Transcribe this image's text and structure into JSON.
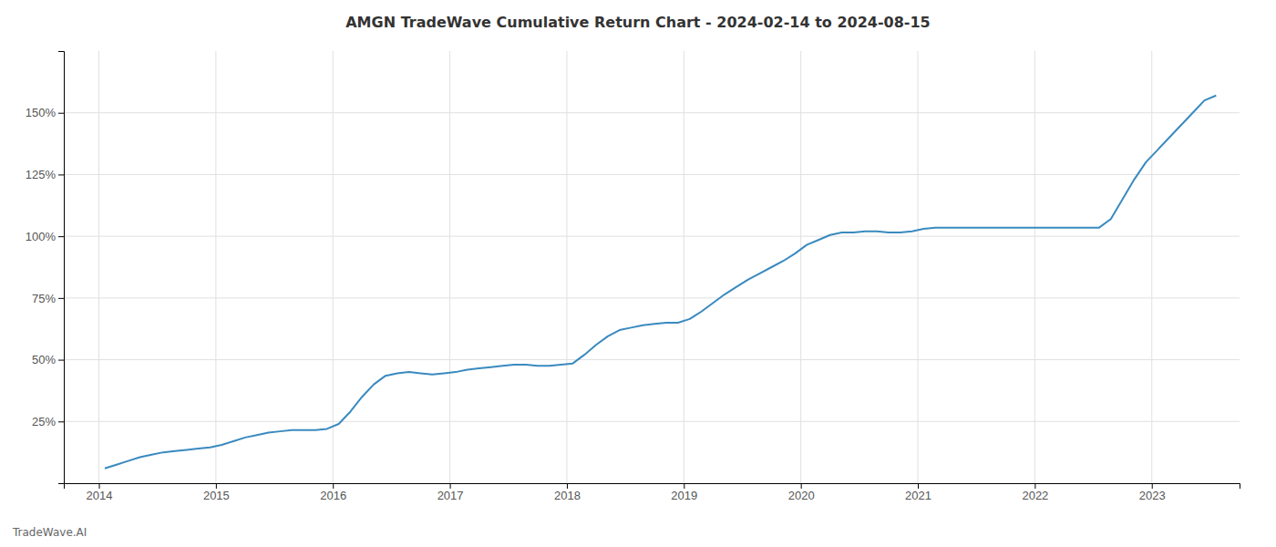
{
  "chart_data": {
    "type": "line",
    "title": "AMGN TradeWave Cumulative Return Chart - 2024-02-14 to 2024-08-15",
    "annotations": [
      "TradeWave.AI"
    ],
    "color": "#3a8abf",
    "grid": true,
    "x": [
      2014.05,
      2014.15,
      2014.25,
      2014.35,
      2014.45,
      2014.55,
      2014.65,
      2014.75,
      2014.85,
      2014.95,
      2015.05,
      2015.15,
      2015.25,
      2015.35,
      2015.45,
      2015.55,
      2015.65,
      2015.75,
      2015.85,
      2015.95,
      2016.05,
      2016.15,
      2016.25,
      2016.35,
      2016.45,
      2016.55,
      2016.65,
      2016.75,
      2016.85,
      2016.95,
      2017.05,
      2017.15,
      2017.25,
      2017.35,
      2017.45,
      2017.55,
      2017.65,
      2017.75,
      2017.85,
      2017.95,
      2018.05,
      2018.15,
      2018.25,
      2018.35,
      2018.45,
      2018.55,
      2018.65,
      2018.75,
      2018.85,
      2018.95,
      2019.05,
      2019.15,
      2019.25,
      2019.35,
      2019.45,
      2019.55,
      2019.65,
      2019.75,
      2019.85,
      2019.95,
      2020.05,
      2020.15,
      2020.25,
      2020.35,
      2020.45,
      2020.55,
      2020.65,
      2020.75,
      2020.85,
      2020.95,
      2021.05,
      2021.15,
      2021.25,
      2021.35,
      2021.45,
      2021.55,
      2021.65,
      2021.75,
      2021.85,
      2021.95,
      2022.05,
      2022.15,
      2022.25,
      2022.35,
      2022.45,
      2022.55,
      2022.65,
      2022.75,
      2022.85,
      2022.95,
      2023.05,
      2023.15,
      2023.25,
      2023.35,
      2023.45,
      2023.55
    ],
    "values": [
      6.0,
      7.5,
      9.0,
      10.5,
      11.5,
      12.5,
      13.0,
      13.5,
      14.0,
      14.5,
      15.5,
      17.0,
      18.5,
      19.5,
      20.5,
      21.0,
      21.5,
      21.5,
      21.5,
      22.0,
      24.0,
      29.0,
      35.0,
      40.0,
      43.5,
      44.5,
      45.0,
      44.5,
      44.0,
      44.5,
      45.0,
      46.0,
      46.5,
      47.0,
      47.5,
      48.0,
      48.0,
      47.5,
      47.5,
      48.0,
      48.5,
      52.0,
      56.0,
      59.5,
      62.0,
      63.0,
      64.0,
      64.5,
      65.0,
      65.0,
      66.5,
      69.5,
      73.0,
      76.5,
      79.5,
      82.5,
      85.0,
      87.5,
      90.0,
      93.0,
      96.5,
      98.5,
      100.5,
      101.5,
      101.5,
      102.0,
      102.0,
      101.5,
      101.5,
      102.0,
      103.0,
      103.5,
      103.5,
      103.5,
      103.5,
      103.5,
      103.5,
      103.5,
      103.5,
      103.5,
      103.5,
      103.5,
      103.5,
      103.5,
      103.5,
      103.5,
      107.0,
      115.0,
      123.0,
      130.0,
      135.0,
      140.0,
      145.0,
      150.0,
      155.0,
      157.0
    ],
    "xlim": [
      2013.7,
      2023.75
    ],
    "xticks": [
      2014,
      2015,
      2016,
      2017,
      2018,
      2019,
      2020,
      2021,
      2022,
      2023
    ],
    "ylim": [
      0,
      175
    ],
    "yticks": [
      {
        "value": 25,
        "label": "25%"
      },
      {
        "value": 50,
        "label": "50%"
      },
      {
        "value": 75,
        "label": "75%"
      },
      {
        "value": 100,
        "label": "100%"
      },
      {
        "value": 125,
        "label": "125%"
      },
      {
        "value": 150,
        "label": "150%"
      }
    ]
  }
}
